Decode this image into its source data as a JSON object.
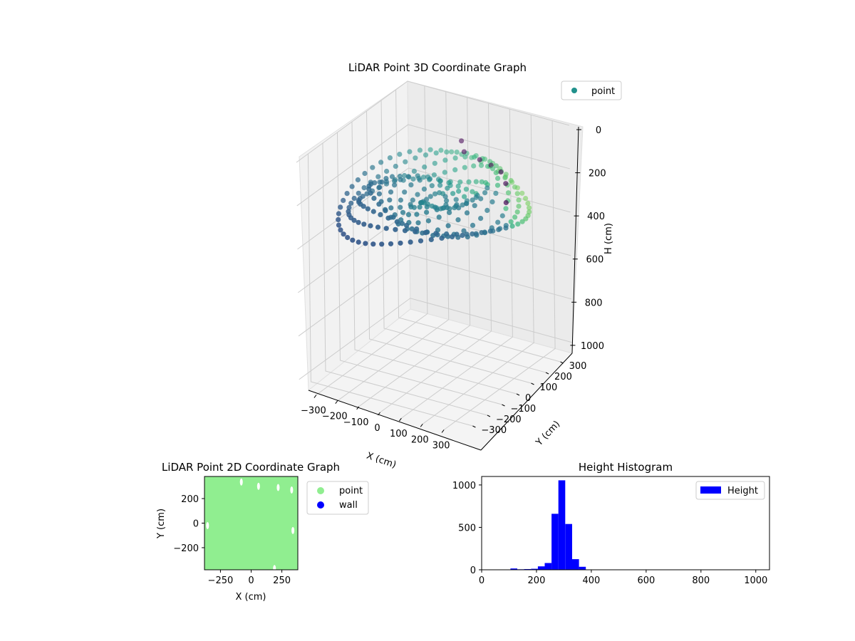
{
  "chart_data": [
    {
      "type": "scatter",
      "projection": "3d",
      "title": "LiDAR Point 3D Coordinate Graph",
      "xlabel": "X (cm)",
      "ylabel": "Y (cm)",
      "zlabel": "H (cm)",
      "xlim": [
        -380,
        380
      ],
      "ylim": [
        -380,
        380
      ],
      "zlim": [
        0,
        1050
      ],
      "z_inverted": true,
      "xticks": [
        "−300",
        "−200",
        "−100",
        "0",
        "100",
        "200",
        "300"
      ],
      "yticks": [
        "−300",
        "−200",
        "−100",
        "0",
        "100",
        "200",
        "300"
      ],
      "zticks": [
        "0",
        "200",
        "400",
        "600",
        "800",
        "1000"
      ],
      "colormap": "viridis",
      "grid": true,
      "legend": {
        "position": "top-right",
        "entries": [
          {
            "label": "point",
            "color": "#21918c"
          }
        ]
      },
      "series": [
        {
          "name": "point",
          "description_rings": [
            {
              "r": 370,
              "h": [
                230,
                330
              ]
            },
            {
              "r": 330,
              "h": [
                220,
                300
              ]
            },
            {
              "r": 290,
              "h": [
                200,
                300
              ]
            },
            {
              "r": 250,
              "h": [
                180,
                290
              ]
            },
            {
              "r": 210,
              "h": [
                200,
                290
              ]
            },
            {
              "r": 170,
              "h": [
                220,
                280
              ]
            },
            {
              "r": 130,
              "h": [
                230,
                280
              ]
            },
            {
              "r": 90,
              "h": [
                240,
                280
              ]
            },
            {
              "r": 50,
              "h": [
                250,
                280
              ]
            }
          ],
          "outliers": [
            {
              "x": -60,
              "y": 280,
              "h": 140
            },
            {
              "x": 60,
              "y": 230,
              "h": 170
            },
            {
              "x": 180,
              "y": 200,
              "h": 180
            },
            {
              "x": 230,
              "y": 160,
              "h": 200
            },
            {
              "x": 300,
              "y": 60,
              "h": 220
            },
            {
              "x": -20,
              "y": 240,
              "h": 160
            },
            {
              "x": 120,
              "y": 220,
              "h": 175
            }
          ]
        }
      ]
    },
    {
      "type": "scatter",
      "title": "LiDAR Point 2D Coordinate Graph",
      "xlabel": "X (cm)",
      "ylabel": "Y (cm)",
      "xlim": [
        -380,
        380
      ],
      "ylim": [
        -380,
        380
      ],
      "xticks": [
        "−250",
        "0",
        "250"
      ],
      "yticks": [
        "200",
        "0",
        "−200"
      ],
      "legend": {
        "position": "right",
        "entries": [
          {
            "label": "point",
            "color": "#90ee90"
          },
          {
            "label": "wall",
            "color": "#0000ff"
          }
        ]
      },
      "series": [
        {
          "name": "point",
          "color": "#90ee90",
          "coverage": "dense, nearly full square"
        },
        {
          "name": "wall",
          "color": "#0000ff",
          "points": []
        }
      ],
      "gaps": [
        {
          "x": -80,
          "y": 335
        },
        {
          "x": 60,
          "y": 300
        },
        {
          "x": 220,
          "y": 290
        },
        {
          "x": 330,
          "y": 270
        },
        {
          "x": -355,
          "y": -20
        },
        {
          "x": 190,
          "y": -370
        },
        {
          "x": 340,
          "y": -60
        }
      ]
    },
    {
      "type": "bar",
      "subtype": "histogram",
      "title": "Height Histogram",
      "xlim": [
        0,
        1050
      ],
      "ylim": [
        0,
        1100
      ],
      "xticks": [
        "0",
        "200",
        "400",
        "600",
        "800",
        "1000"
      ],
      "yticks": [
        "0",
        "500",
        "1000"
      ],
      "color": "#0000ff",
      "legend": {
        "position": "top-right",
        "entries": [
          {
            "label": "Height",
            "color": "#0000ff"
          }
        ]
      },
      "bins": [
        {
          "x0": 105,
          "x1": 130,
          "value": 15
        },
        {
          "x0": 130,
          "x1": 155,
          "value": 6
        },
        {
          "x0": 155,
          "x1": 180,
          "value": 8
        },
        {
          "x0": 180,
          "x1": 205,
          "value": 12
        },
        {
          "x0": 205,
          "x1": 230,
          "value": 40
        },
        {
          "x0": 230,
          "x1": 255,
          "value": 80
        },
        {
          "x0": 255,
          "x1": 280,
          "value": 660
        },
        {
          "x0": 280,
          "x1": 305,
          "value": 1055
        },
        {
          "x0": 305,
          "x1": 330,
          "value": 540
        },
        {
          "x0": 330,
          "x1": 355,
          "value": 125
        },
        {
          "x0": 355,
          "x1": 380,
          "value": 35
        }
      ]
    }
  ]
}
